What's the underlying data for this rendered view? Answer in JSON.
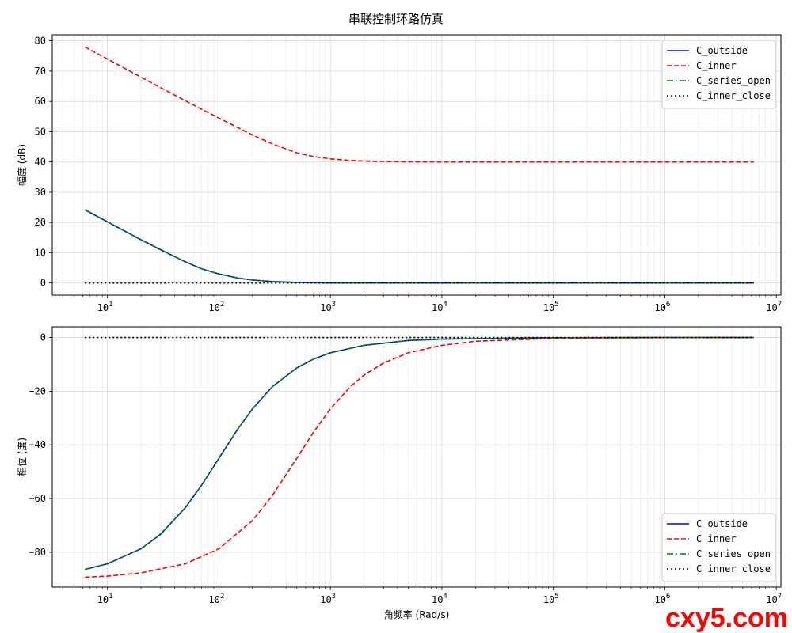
{
  "figure": {
    "title": "串联控制环路仿真",
    "watermark": "cxy5.com"
  },
  "chart_data": [
    {
      "type": "line",
      "title": "",
      "xlabel": "",
      "ylabel": "幅度 (dB)",
      "xscale": "log",
      "xlim": [
        3.2,
        11000000
      ],
      "ylim": [
        -4,
        82
      ],
      "xticks": [
        10,
        100,
        1000,
        10000,
        100000,
        1000000,
        10000000
      ],
      "xticklabels": [
        {
          "base": "10",
          "exp": "1"
        },
        {
          "base": "10",
          "exp": "2"
        },
        {
          "base": "10",
          "exp": "3"
        },
        {
          "base": "10",
          "exp": "4"
        },
        {
          "base": "10",
          "exp": "5"
        },
        {
          "base": "10",
          "exp": "6"
        },
        {
          "base": "10",
          "exp": "7"
        }
      ],
      "yticks": [
        0,
        10,
        20,
        30,
        40,
        50,
        60,
        70,
        80
      ],
      "yticklabels": [
        "0",
        "10",
        "20",
        "30",
        "40",
        "50",
        "60",
        "70",
        "80"
      ],
      "grid": true,
      "legend_position": "top-right",
      "series": [
        {
          "name": "C_outside",
          "color": "#0000ff",
          "style": "solid",
          "x": [
            6.28,
            10,
            20,
            30,
            50,
            70,
            100,
            150,
            200,
            300,
            500,
            1000,
            10000,
            100000,
            1000000,
            6280000
          ],
          "y": [
            24.2,
            20.2,
            14.3,
            11.0,
            7.0,
            4.7,
            3.0,
            1.6,
            1.0,
            0.5,
            0.2,
            0.04,
            0,
            0,
            0,
            0
          ]
        },
        {
          "name": "C_inner",
          "color": "#ff0000",
          "style": "dashed",
          "x": [
            6.28,
            10,
            20,
            50,
            100,
            200,
            300,
            500,
            700,
            1000,
            1500,
            2000,
            3000,
            5000,
            10000,
            100000,
            1000000,
            6280000
          ],
          "y": [
            78.0,
            74.0,
            68.0,
            60.2,
            54.5,
            48.9,
            46.0,
            43.0,
            41.8,
            41.0,
            40.5,
            40.3,
            40.15,
            40.05,
            40.01,
            40.0,
            40.0,
            40.0
          ]
        },
        {
          "name": "C_series_open",
          "color": "#008000",
          "style": "dashdot",
          "x": [
            6.28,
            10,
            20,
            30,
            50,
            70,
            100,
            150,
            200,
            300,
            500,
            1000,
            10000,
            100000,
            1000000,
            6280000
          ],
          "y": [
            24.2,
            20.2,
            14.3,
            11.0,
            7.0,
            4.7,
            3.0,
            1.6,
            1.0,
            0.5,
            0.2,
            0.04,
            0,
            0,
            0,
            0
          ]
        },
        {
          "name": "C_inner_close",
          "color": "#000000",
          "style": "dotted",
          "x": [
            6.28,
            6280000
          ],
          "y": [
            0,
            0
          ]
        }
      ]
    },
    {
      "type": "line",
      "title": "",
      "xlabel": "角频率 (Rad/s)",
      "ylabel": "相位 (度)",
      "xscale": "log",
      "xlim": [
        3.2,
        11000000
      ],
      "ylim": [
        -93,
        4
      ],
      "xticks": [
        10,
        100,
        1000,
        10000,
        100000,
        1000000,
        10000000
      ],
      "xticklabels": [
        {
          "base": "10",
          "exp": "1"
        },
        {
          "base": "10",
          "exp": "2"
        },
        {
          "base": "10",
          "exp": "3"
        },
        {
          "base": "10",
          "exp": "4"
        },
        {
          "base": "10",
          "exp": "5"
        },
        {
          "base": "10",
          "exp": "6"
        },
        {
          "base": "10",
          "exp": "7"
        }
      ],
      "yticks": [
        0,
        -20,
        -40,
        -60,
        -80
      ],
      "yticklabels": [
        "0",
        "−20",
        "−40",
        "−60",
        "−80"
      ],
      "grid": true,
      "legend_position": "bottom-right",
      "series": [
        {
          "name": "C_outside",
          "color": "#0000ff",
          "style": "solid",
          "x": [
            6.28,
            10,
            20,
            30,
            50,
            70,
            100,
            150,
            200,
            300,
            500,
            700,
            1000,
            2000,
            5000,
            10000,
            100000,
            1000000,
            6280000
          ],
          "y": [
            -86.4,
            -84.3,
            -78.7,
            -73.3,
            -63.4,
            -55.0,
            -45.0,
            -33.7,
            -26.6,
            -18.4,
            -11.3,
            -8.1,
            -5.7,
            -2.9,
            -1.1,
            -0.6,
            -0.06,
            -0.01,
            0
          ]
        },
        {
          "name": "C_inner",
          "color": "#ff0000",
          "style": "dashed",
          "x": [
            6.28,
            10,
            20,
            50,
            100,
            200,
            300,
            500,
            700,
            1000,
            1500,
            2000,
            3000,
            5000,
            10000,
            20000,
            100000,
            1000000,
            6280000
          ],
          "y": [
            -89.3,
            -88.9,
            -87.7,
            -84.3,
            -78.7,
            -68.2,
            -59.0,
            -45.0,
            -35.5,
            -26.6,
            -18.4,
            -14.0,
            -9.5,
            -5.7,
            -2.9,
            -1.4,
            -0.3,
            -0.03,
            0
          ]
        },
        {
          "name": "C_series_open",
          "color": "#008000",
          "style": "dashdot",
          "x": [
            6.28,
            10,
            20,
            30,
            50,
            70,
            100,
            150,
            200,
            300,
            500,
            700,
            1000,
            2000,
            5000,
            10000,
            100000,
            1000000,
            6280000
          ],
          "y": [
            -86.4,
            -84.3,
            -78.7,
            -73.3,
            -63.4,
            -55.0,
            -45.0,
            -33.7,
            -26.6,
            -18.4,
            -11.3,
            -8.1,
            -5.7,
            -2.9,
            -1.1,
            -0.6,
            -0.06,
            -0.01,
            0
          ]
        },
        {
          "name": "C_inner_close",
          "color": "#000000",
          "style": "dotted",
          "x": [
            6.28,
            6280000
          ],
          "y": [
            0,
            0
          ]
        }
      ]
    }
  ]
}
